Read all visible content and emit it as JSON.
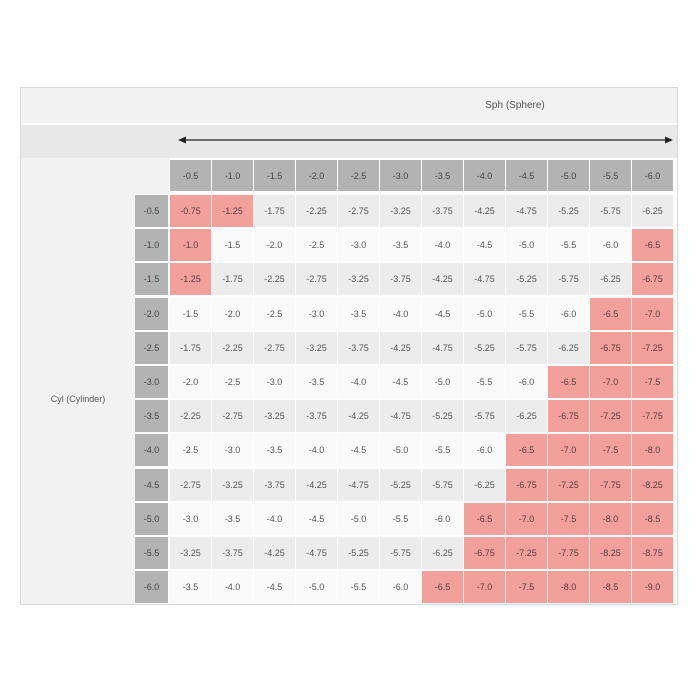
{
  "title": "Sph (Sphere)",
  "row_axis_label": "Cyl (Cylinder)",
  "colors": {
    "header": "#b3b3b3",
    "highlight": "#f2a09c",
    "light": "#fafafa",
    "alt": "#ececec"
  },
  "columns": [
    "-0.5",
    "-1.0",
    "-1.5",
    "-2.0",
    "-2.5",
    "-3.0",
    "-3.5",
    "-4.0",
    "-4.5",
    "-5.0",
    "-5.5",
    "-6.0"
  ],
  "rows": [
    {
      "cyl": "-0.5",
      "values": [
        "-0.75",
        "-1.25",
        "-1.75",
        "-2.25",
        "-2.75",
        "-3.25",
        "-3.75",
        "-4.25",
        "-4.75",
        "-5.25",
        "-5.75",
        "-6.25"
      ],
      "highlight": [
        0,
        1
      ]
    },
    {
      "cyl": "-1.0",
      "values": [
        "-1.0",
        "-1.5",
        "-2.0",
        "-2.5",
        "-3.0",
        "-3.5",
        "-4.0",
        "-4.5",
        "-5.0",
        "-5.5",
        "-6.0",
        "-6.5"
      ],
      "highlight": [
        0,
        11
      ]
    },
    {
      "cyl": "-1.5",
      "values": [
        "-1.25",
        "-1.75",
        "-2.25",
        "-2.75",
        "-3.25",
        "-3.75",
        "-4.25",
        "-4.75",
        "-5.25",
        "-5.75",
        "-6.25",
        "-6.75"
      ],
      "highlight": [
        0,
        11
      ]
    },
    {
      "cyl": "-2.0",
      "values": [
        "-1.5",
        "-2.0",
        "-2.5",
        "-3.0",
        "-3.5",
        "-4.0",
        "-4.5",
        "-5.0",
        "-5.5",
        "-6.0",
        "-6.5",
        "-7.0"
      ],
      "highlight": [
        10,
        11
      ]
    },
    {
      "cyl": "-2.5",
      "values": [
        "-1.75",
        "-2.25",
        "-2.75",
        "-3.25",
        "-3.75",
        "-4.25",
        "-4.75",
        "-5.25",
        "-5.75",
        "-6.25",
        "-6.75",
        "-7.25"
      ],
      "highlight": [
        10,
        11
      ]
    },
    {
      "cyl": "-3.0",
      "values": [
        "-2.0",
        "-2.5",
        "-3.0",
        "-3.5",
        "-4.0",
        "-4.5",
        "-5.0",
        "-5.5",
        "-6.0",
        "-6.5",
        "-7.0",
        "-7.5"
      ],
      "highlight": [
        9,
        10,
        11
      ]
    },
    {
      "cyl": "-3.5",
      "values": [
        "-2.25",
        "-2.75",
        "-3.25",
        "-3.75",
        "-4.25",
        "-4.75",
        "-5.25",
        "-5.75",
        "-6.25",
        "-6.75",
        "-7.25",
        "-7.75"
      ],
      "highlight": [
        9,
        10,
        11
      ]
    },
    {
      "cyl": "-4.0",
      "values": [
        "-2.5",
        "-3.0",
        "-3.5",
        "-4.0",
        "-4.5",
        "-5.0",
        "-5.5",
        "-6.0",
        "-6.5",
        "-7.0",
        "-7.5",
        "-8.0"
      ],
      "highlight": [
        8,
        9,
        10,
        11
      ]
    },
    {
      "cyl": "-4.5",
      "values": [
        "-2.75",
        "-3.25",
        "-3.75",
        "-4.25",
        "-4.75",
        "-5.25",
        "-5.75",
        "-6.25",
        "-6.75",
        "-7.25",
        "-7.75",
        "-8.25"
      ],
      "highlight": [
        8,
        9,
        10,
        11
      ]
    },
    {
      "cyl": "-5.0",
      "values": [
        "-3.0",
        "-3.5",
        "-4.0",
        "-4.5",
        "-5.0",
        "-5.5",
        "-6.0",
        "-6.5",
        "-7.0",
        "-7.5",
        "-8.0",
        "-8.5"
      ],
      "highlight": [
        7,
        8,
        9,
        10,
        11
      ]
    },
    {
      "cyl": "-5.5",
      "values": [
        "-3.25",
        "-3.75",
        "-4.25",
        "-4.75",
        "-5.25",
        "-5.75",
        "-6.25",
        "-6.75",
        "-7.25",
        "-7.75",
        "-8.25",
        "-8.75"
      ],
      "highlight": [
        7,
        8,
        9,
        10,
        11
      ]
    },
    {
      "cyl": "-6.0",
      "values": [
        "-3.5",
        "-4.0",
        "-4.5",
        "-5.0",
        "-5.5",
        "-6.0",
        "-6.5",
        "-7.0",
        "-7.5",
        "-8.0",
        "-8.5",
        "-9.0"
      ],
      "highlight": [
        6,
        7,
        8,
        9,
        10,
        11
      ]
    }
  ]
}
